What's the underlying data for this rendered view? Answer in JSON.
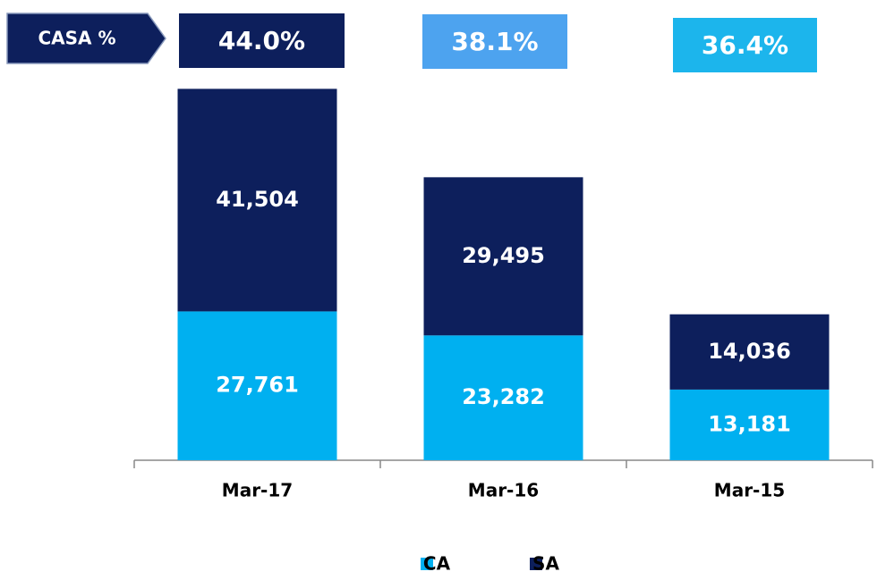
{
  "chart_data": {
    "type": "stacked_bar",
    "categories": [
      "Mar-17",
      "Mar-16",
      "Mar-15"
    ],
    "series": [
      {
        "name": "CA",
        "color": "#00b0f0",
        "values": [
          27761,
          23282,
          13181
        ],
        "value_labels": [
          "27,761",
          "23,282",
          "13,181"
        ]
      },
      {
        "name": "SA",
        "color": "#0d1f5c",
        "values": [
          41504,
          29495,
          14036
        ],
        "value_labels": [
          "41,504",
          "29,495",
          "14,036"
        ]
      }
    ],
    "ylim": [
      0,
      70000
    ],
    "casa": {
      "label": "CASA %",
      "labels": [
        "44.0%",
        "38.1%",
        "36.4%"
      ],
      "colors": [
        "#0d1f5c",
        "#4da3ef",
        "#1cb5ec"
      ]
    }
  }
}
